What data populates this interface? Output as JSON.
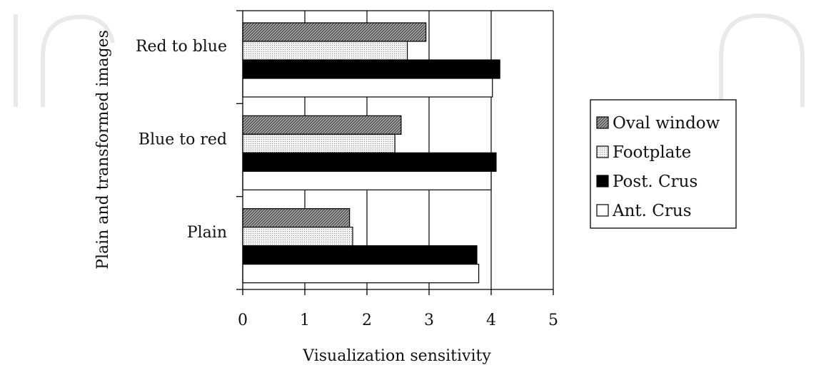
{
  "chart_data": {
    "type": "bar",
    "orientation": "horizontal",
    "title": "",
    "xlabel": "Visualization sensitivity",
    "ylabel": "Plain and transformed images",
    "xlim": [
      0,
      5
    ],
    "xticks": [
      "0",
      "1",
      "2",
      "3",
      "4",
      "5"
    ],
    "categories": [
      "Red to blue",
      "Blue to red",
      "Plain"
    ],
    "grid": "vertical",
    "legend_position": "right",
    "series": [
      {
        "name": "Oval window",
        "color": "#808080",
        "pattern": "diagonal-hatch",
        "values": [
          2.95,
          2.55,
          1.72
        ]
      },
      {
        "name": "Footplate",
        "color": "#e0e0e0",
        "pattern": "dotted",
        "values": [
          2.65,
          2.45,
          1.77
        ]
      },
      {
        "name": "Post. Crus",
        "color": "#000000",
        "pattern": "solid",
        "values": [
          4.14,
          4.08,
          3.77
        ]
      },
      {
        "name": "Ant. Crus",
        "color": "#ffffff",
        "pattern": "solid",
        "values": [
          4.02,
          4.0,
          3.8
        ]
      }
    ]
  }
}
